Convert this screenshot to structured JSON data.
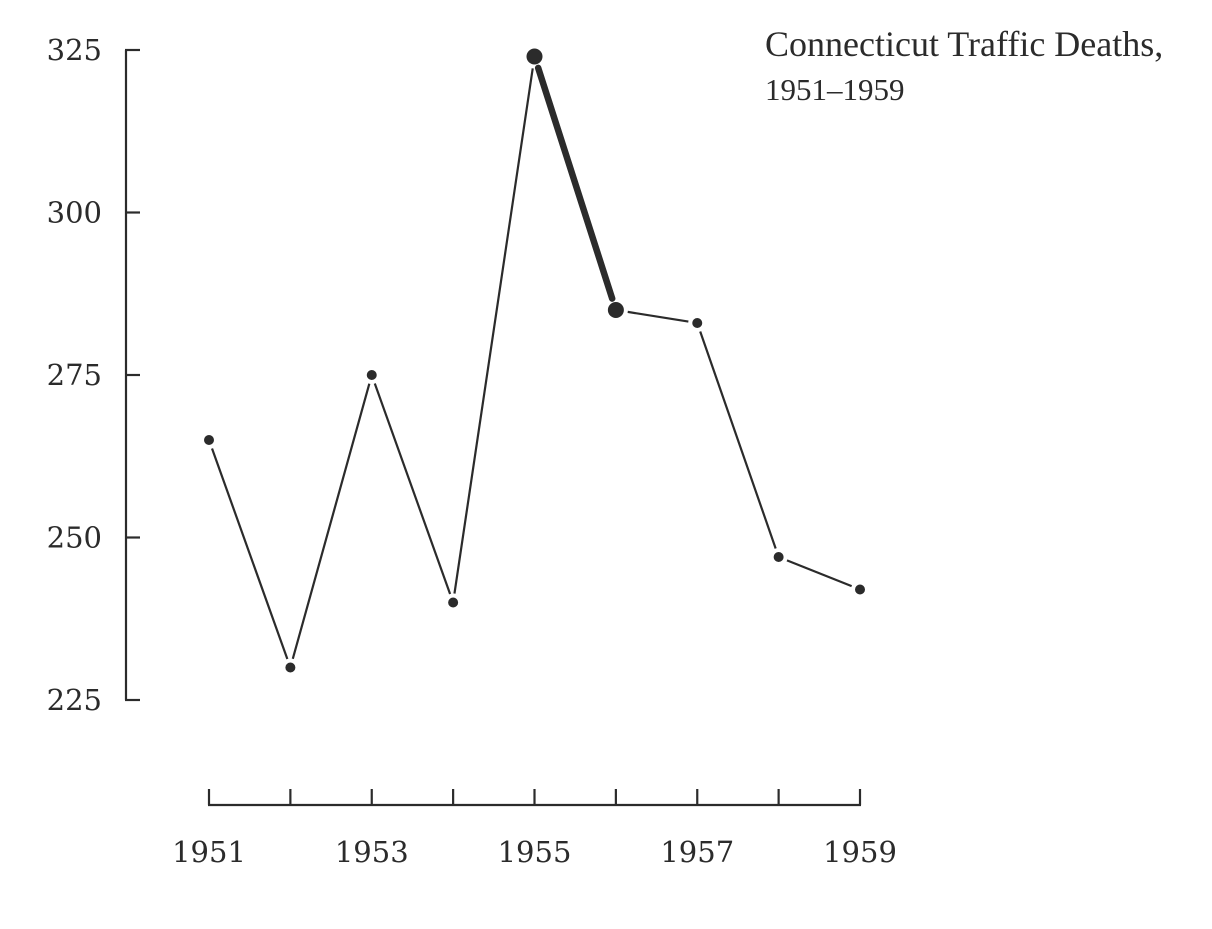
{
  "chart_data": {
    "type": "line",
    "title": "Connecticut Traffic Deaths,",
    "subtitle": "1951–1959",
    "xlabel": "",
    "ylabel": "",
    "x": [
      1951,
      1952,
      1953,
      1954,
      1955,
      1956,
      1957,
      1958,
      1959
    ],
    "values": [
      265,
      230,
      275,
      240,
      324,
      285,
      283,
      247,
      242
    ],
    "highlight_segment": [
      1955,
      1956
    ],
    "xlim": [
      1951,
      1959
    ],
    "ylim": [
      225,
      325
    ],
    "y_ticks": [
      225,
      250,
      275,
      300,
      325
    ],
    "x_ticks": [
      1951,
      1952,
      1953,
      1954,
      1955,
      1956,
      1957,
      1958,
      1959
    ],
    "x_tick_labels": [
      {
        "x": 1951,
        "label": "1951"
      },
      {
        "x": 1953,
        "label": "1953"
      },
      {
        "x": 1955,
        "label": "1955"
      },
      {
        "x": 1957,
        "label": "1957"
      },
      {
        "x": 1959,
        "label": "1959"
      }
    ],
    "grid": false,
    "legend": "none",
    "colors": {
      "ink": "#2b2b2b",
      "background": "#ffffff"
    }
  }
}
